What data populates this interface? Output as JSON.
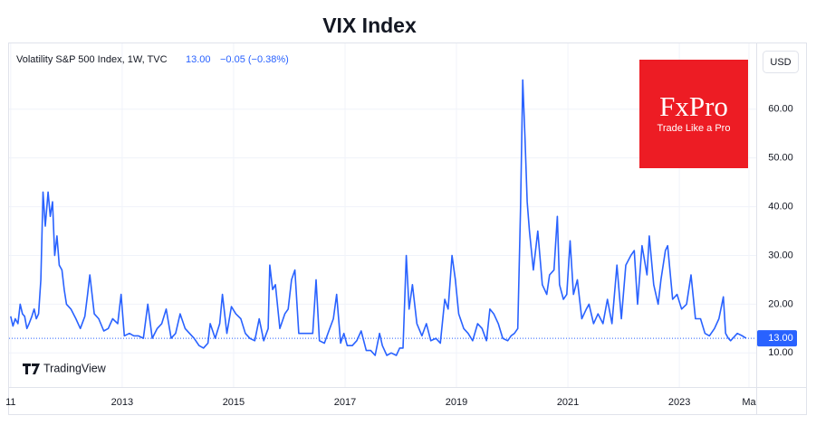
{
  "chart_data": {
    "type": "line",
    "title": "VIX Index",
    "legend_title": "Volatility S&P 500 Index, 1W, TVC",
    "change_text": "−0.05 (−0.38%)",
    "currency": "USD",
    "brand": "FxPro",
    "brand_tagline": "Trade Like a Pro",
    "platform": "TradingView",
    "price_line": {
      "value": 13,
      "label": "13.00"
    },
    "x": [
      2011.0,
      2011.04,
      2011.08,
      2011.13,
      2011.17,
      2011.21,
      2011.25,
      2011.29,
      2011.33,
      2011.38,
      2011.42,
      2011.46,
      2011.5,
      2011.54,
      2011.58,
      2011.62,
      2011.67,
      2011.71,
      2011.75,
      2011.79,
      2011.83,
      2011.87,
      2011.92,
      2011.96,
      2012.0,
      2012.08,
      2012.17,
      2012.25,
      2012.33,
      2012.38,
      2012.42,
      2012.5,
      2012.58,
      2012.67,
      2012.75,
      2012.83,
      2012.92,
      2012.98,
      2013.04,
      2013.13,
      2013.21,
      2013.29,
      2013.38,
      2013.46,
      2013.54,
      2013.63,
      2013.71,
      2013.79,
      2013.88,
      2013.96,
      2014.04,
      2014.13,
      2014.21,
      2014.29,
      2014.38,
      2014.46,
      2014.54,
      2014.58,
      2014.67,
      2014.75,
      2014.8,
      2014.88,
      2014.96,
      2015.04,
      2015.13,
      2015.21,
      2015.29,
      2015.38,
      2015.46,
      2015.54,
      2015.62,
      2015.65,
      2015.7,
      2015.75,
      2015.83,
      2015.92,
      2015.98,
      2016.04,
      2016.1,
      2016.17,
      2016.25,
      2016.33,
      2016.42,
      2016.48,
      2016.54,
      2016.63,
      2016.71,
      2016.79,
      2016.85,
      2016.92,
      2016.98,
      2017.04,
      2017.13,
      2017.21,
      2017.29,
      2017.38,
      2017.46,
      2017.54,
      2017.62,
      2017.67,
      2017.75,
      2017.83,
      2017.92,
      2017.98,
      2018.04,
      2018.1,
      2018.15,
      2018.21,
      2018.29,
      2018.38,
      2018.46,
      2018.54,
      2018.63,
      2018.71,
      2018.79,
      2018.85,
      2018.92,
      2018.98,
      2019.04,
      2019.13,
      2019.21,
      2019.29,
      2019.38,
      2019.46,
      2019.54,
      2019.6,
      2019.67,
      2019.75,
      2019.83,
      2019.92,
      2019.98,
      2020.04,
      2020.1,
      2020.15,
      2020.19,
      2020.23,
      2020.27,
      2020.31,
      2020.38,
      2020.46,
      2020.54,
      2020.62,
      2020.67,
      2020.75,
      2020.81,
      2020.85,
      2020.92,
      2020.98,
      2021.04,
      2021.1,
      2021.17,
      2021.25,
      2021.33,
      2021.38,
      2021.46,
      2021.54,
      2021.63,
      2021.71,
      2021.79,
      2021.88,
      2021.96,
      2022.04,
      2022.13,
      2022.19,
      2022.25,
      2022.33,
      2022.42,
      2022.46,
      2022.54,
      2022.62,
      2022.67,
      2022.75,
      2022.79,
      2022.88,
      2022.96,
      2023.04,
      2023.13,
      2023.21,
      2023.29,
      2023.38,
      2023.46,
      2023.54,
      2023.63,
      2023.71,
      2023.79,
      2023.83,
      2023.88,
      2023.92,
      2023.96,
      2024.04,
      2024.13,
      2024.2
    ],
    "series": [
      {
        "name": "Volatility S&P 500 Index, 1W, TVC",
        "color": "#2962ff",
        "values": [
          17.5,
          15.5,
          17,
          16,
          20,
          18,
          17.5,
          15,
          16,
          17.5,
          19,
          17,
          18,
          25,
          43,
          36,
          43,
          38,
          41,
          30,
          34,
          28,
          27,
          23,
          20,
          19,
          17,
          15,
          17.5,
          22,
          26,
          18,
          17,
          14.5,
          15,
          17,
          16,
          22,
          13.5,
          14,
          13.5,
          13.5,
          13,
          20,
          13,
          15,
          16,
          19,
          13,
          14,
          18,
          15,
          14,
          13,
          11.5,
          11,
          12,
          16,
          13,
          16,
          22,
          14,
          19.5,
          18,
          17,
          14,
          13,
          12.5,
          17,
          12.5,
          15,
          28,
          23,
          24,
          15,
          18,
          19,
          25,
          27,
          14,
          14,
          14,
          14,
          25,
          12.5,
          12,
          14.5,
          17,
          22,
          12,
          14,
          11.5,
          11.5,
          12.5,
          14.5,
          10.5,
          10.5,
          9.5,
          14,
          11.5,
          9.5,
          10,
          9.5,
          11,
          11,
          30,
          19,
          24,
          16,
          13.5,
          16,
          12.5,
          13,
          12,
          21,
          19,
          30,
          25,
          18,
          15,
          14,
          12.5,
          16,
          15,
          12.5,
          19,
          18,
          16,
          13,
          12.5,
          13.5,
          14,
          15,
          40,
          66,
          54,
          41,
          35,
          27,
          35,
          24,
          22,
          26,
          27,
          38,
          24,
          21,
          22,
          33,
          22,
          25,
          17,
          19,
          20,
          16,
          18,
          16,
          21,
          16,
          28,
          17,
          28,
          30,
          31,
          20,
          32,
          26,
          34,
          24,
          20,
          25,
          31,
          32,
          21,
          22,
          19,
          20,
          26,
          17,
          17,
          14,
          13.5,
          15,
          17,
          21.5,
          14,
          13,
          12.5,
          13,
          14,
          13.5,
          13
        ]
      }
    ],
    "xlim": [
      2010.97,
      2024.38
    ],
    "xticks": [
      {
        "value": 2011,
        "label": "11"
      },
      2013,
      2015,
      2017,
      2019,
      2021,
      2023,
      {
        "value": 2024.25,
        "label": "Ma"
      }
    ],
    "ylim": [
      3,
      73.5
    ],
    "yticks": [
      {
        "value": 10,
        "label": "10.00"
      },
      {
        "value": 20,
        "label": "20.00"
      },
      {
        "value": 30,
        "label": "30.00"
      },
      {
        "value": 40,
        "label": "40.00"
      },
      {
        "value": 50,
        "label": "50.00"
      },
      {
        "value": 60,
        "label": "60.00"
      }
    ],
    "grid": true
  }
}
